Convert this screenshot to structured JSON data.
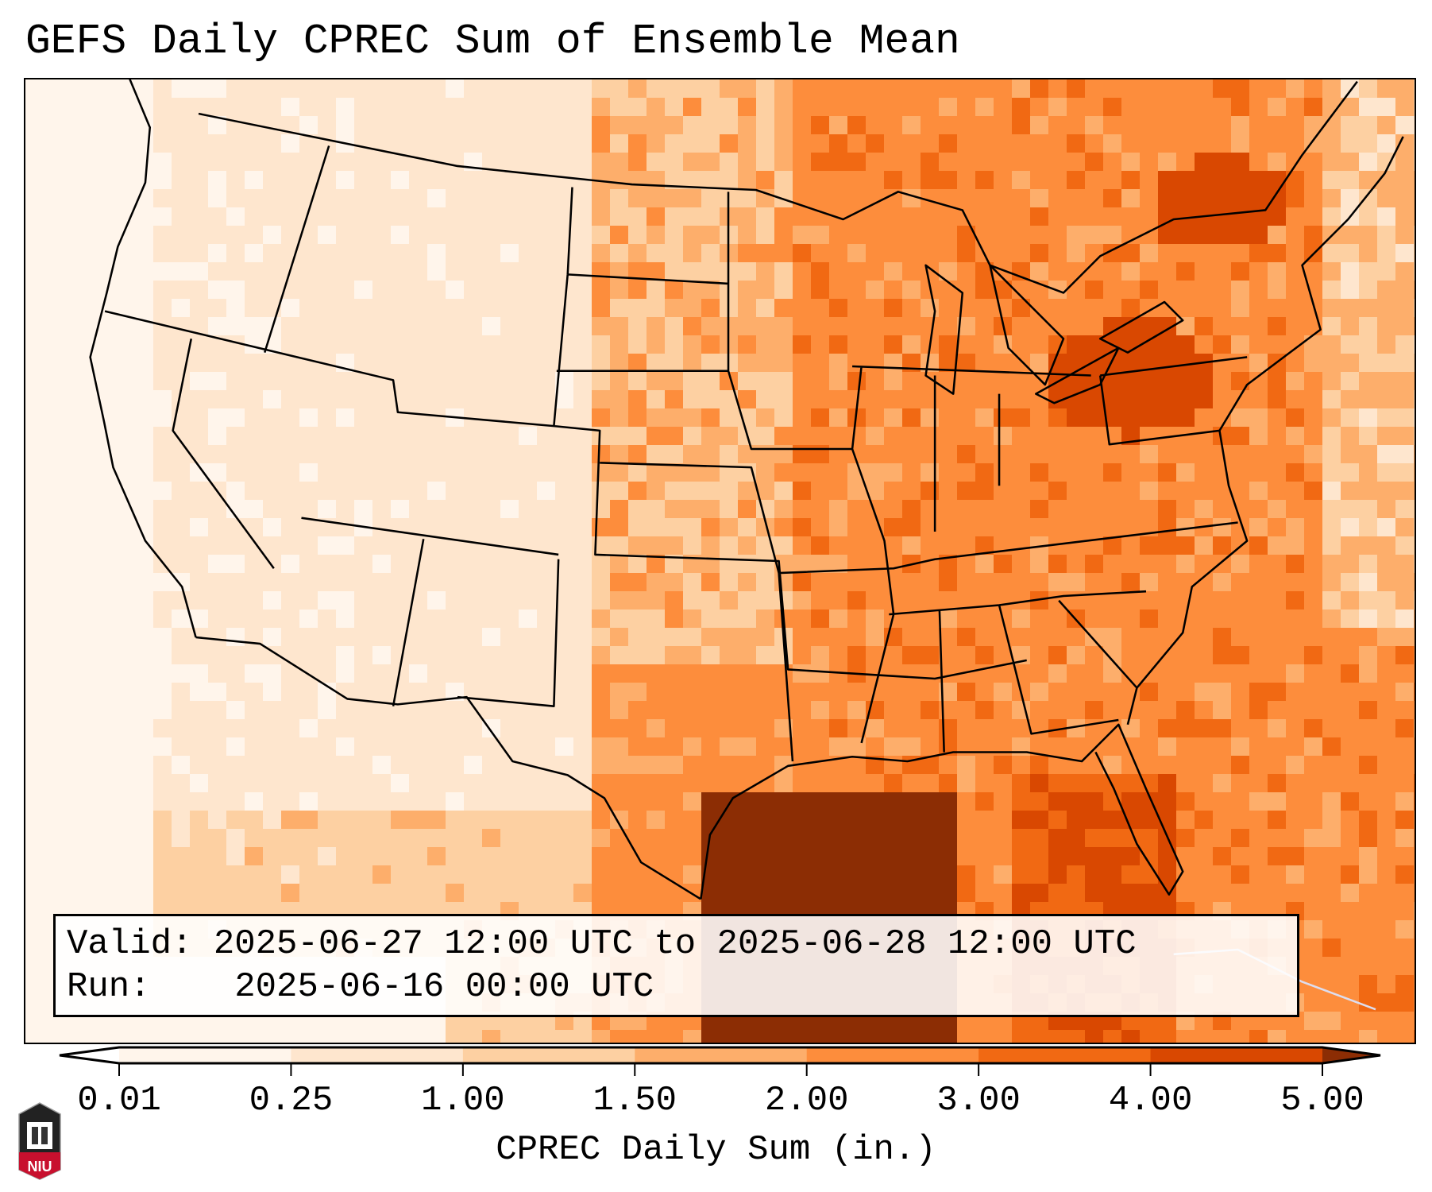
{
  "title": "GEFS Daily CPREC Sum of Ensemble Mean",
  "info": {
    "valid_label": "Valid:",
    "valid_value": "2025-06-27 12:00 UTC to 2025-06-28 12:00 UTC",
    "run_label": "Run:",
    "run_value": "2025-06-16 00:00 UTC"
  },
  "colorbar": {
    "label": "CPREC Daily Sum (in.)",
    "ticks": [
      "0.01",
      "0.25",
      "1.00",
      "1.50",
      "2.00",
      "3.00",
      "4.00",
      "5.00"
    ],
    "levels": [
      0.01,
      0.25,
      1.0,
      1.5,
      2.0,
      3.0,
      4.0,
      5.0
    ],
    "colors": [
      "#fff5eb",
      "#fee6ce",
      "#fdd0a2",
      "#fdae6b",
      "#fd8d3c",
      "#f16913",
      "#d94801",
      "#8c2d04"
    ],
    "extend": "both"
  },
  "logo": {
    "text": "NIU"
  }
}
